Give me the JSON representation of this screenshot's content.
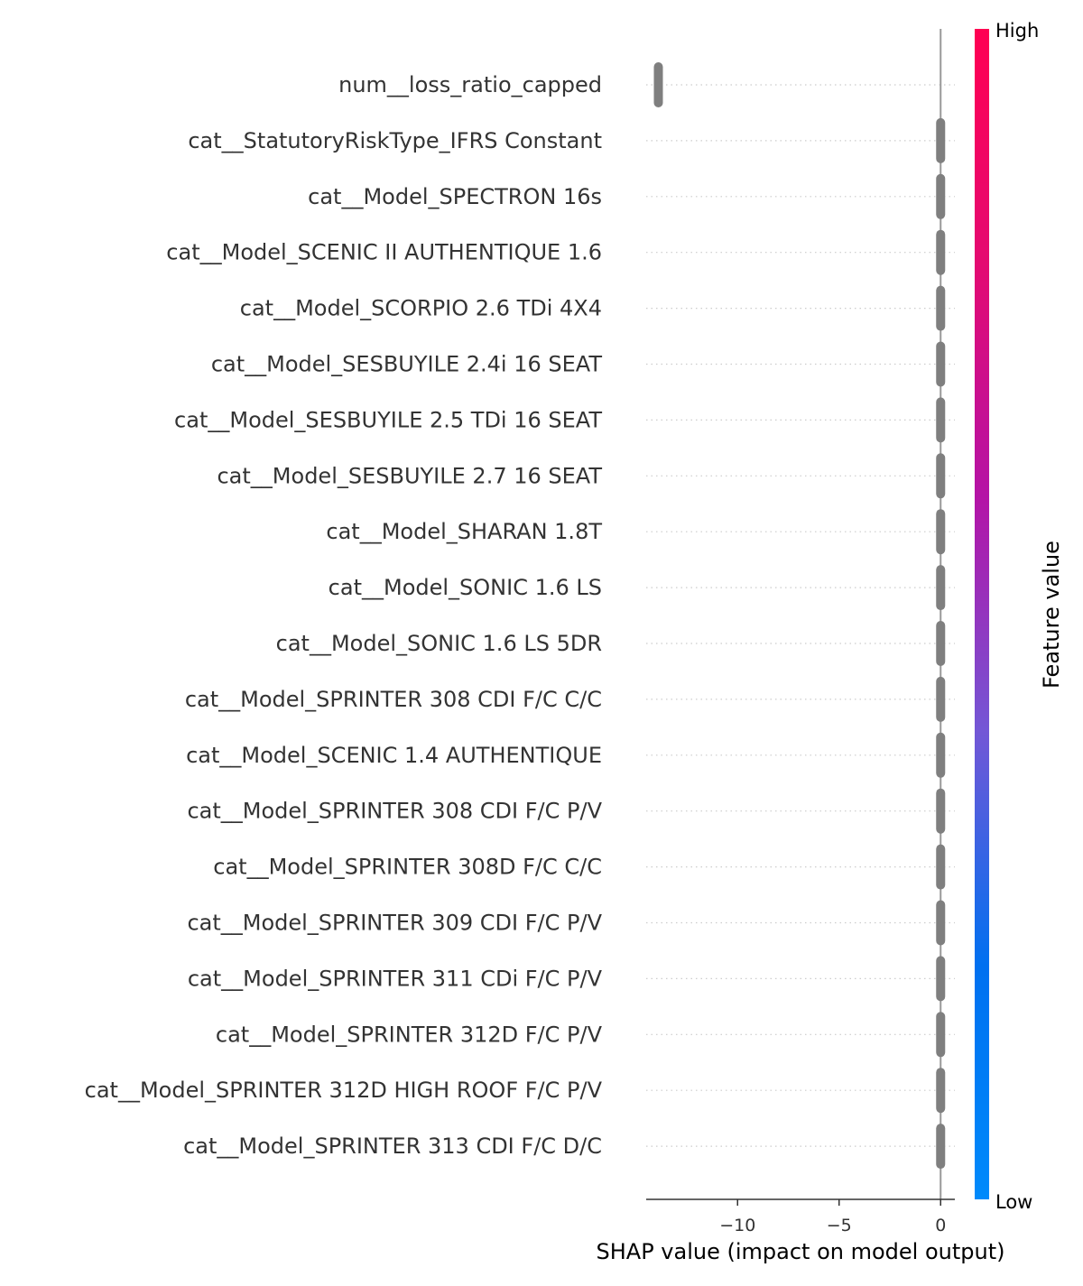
{
  "chart_data": {
    "type": "scatter",
    "subtype": "shap-beeswarm-summary",
    "xlabel": "SHAP value (impact on model output)",
    "xlim": [
      -14.5,
      0.7
    ],
    "xticks": [
      {
        "value": -10,
        "label": "−10"
      },
      {
        "value": -5,
        "label": "−5"
      },
      {
        "value": 0,
        "label": "0"
      }
    ],
    "zero_line": 0,
    "grid": "dotted horizontal row guides",
    "point_color": "#7f7f7f",
    "features": [
      {
        "name": "num__loss_ratio_capped",
        "shap_min": -13.9,
        "shap_max": -13.9
      },
      {
        "name": "cat__StatutoryRiskType_IFRS Constant",
        "shap_min": 0,
        "shap_max": 0
      },
      {
        "name": "cat__Model_SPECTRON 16s",
        "shap_min": 0,
        "shap_max": 0
      },
      {
        "name": "cat__Model_SCENIC II AUTHENTIQUE 1.6",
        "shap_min": 0,
        "shap_max": 0
      },
      {
        "name": "cat__Model_SCORPIO 2.6 TDi 4X4",
        "shap_min": 0,
        "shap_max": 0
      },
      {
        "name": "cat__Model_SESBUYILE 2.4i 16 SEAT",
        "shap_min": 0,
        "shap_max": 0
      },
      {
        "name": "cat__Model_SESBUYILE 2.5 TDi 16 SEAT",
        "shap_min": 0,
        "shap_max": 0
      },
      {
        "name": "cat__Model_SESBUYILE 2.7 16 SEAT",
        "shap_min": 0,
        "shap_max": 0
      },
      {
        "name": "cat__Model_SHARAN 1.8T",
        "shap_min": 0,
        "shap_max": 0
      },
      {
        "name": "cat__Model_SONIC 1.6 LS",
        "shap_min": 0,
        "shap_max": 0
      },
      {
        "name": "cat__Model_SONIC 1.6 LS 5DR",
        "shap_min": 0,
        "shap_max": 0
      },
      {
        "name": "cat__Model_SPRINTER 308 CDI F/C C/C",
        "shap_min": 0,
        "shap_max": 0
      },
      {
        "name": "cat__Model_SCENIC 1.4 AUTHENTIQUE",
        "shap_min": 0,
        "shap_max": 0
      },
      {
        "name": "cat__Model_SPRINTER 308 CDI F/C P/V",
        "shap_min": 0,
        "shap_max": 0
      },
      {
        "name": "cat__Model_SPRINTER 308D F/C C/C",
        "shap_min": 0,
        "shap_max": 0
      },
      {
        "name": "cat__Model_SPRINTER 309 CDI F/C P/V",
        "shap_min": 0,
        "shap_max": 0
      },
      {
        "name": "cat__Model_SPRINTER 311 CDi F/C P/V",
        "shap_min": 0,
        "shap_max": 0
      },
      {
        "name": "cat__Model_SPRINTER 312D F/C P/V",
        "shap_min": 0,
        "shap_max": 0
      },
      {
        "name": "cat__Model_SPRINTER 312D HIGH ROOF F/C P/V",
        "shap_min": 0,
        "shap_max": 0
      },
      {
        "name": "cat__Model_SPRINTER 313 CDI F/C D/C",
        "shap_min": 0,
        "shap_max": 0
      }
    ],
    "colorbar": {
      "title": "Feature value",
      "high_label": "High",
      "low_label": "Low",
      "gradient": [
        "#008afb",
        "#0070f0",
        "#7357d6",
        "#b413a6",
        "#e40a71",
        "#ff0052"
      ]
    }
  }
}
